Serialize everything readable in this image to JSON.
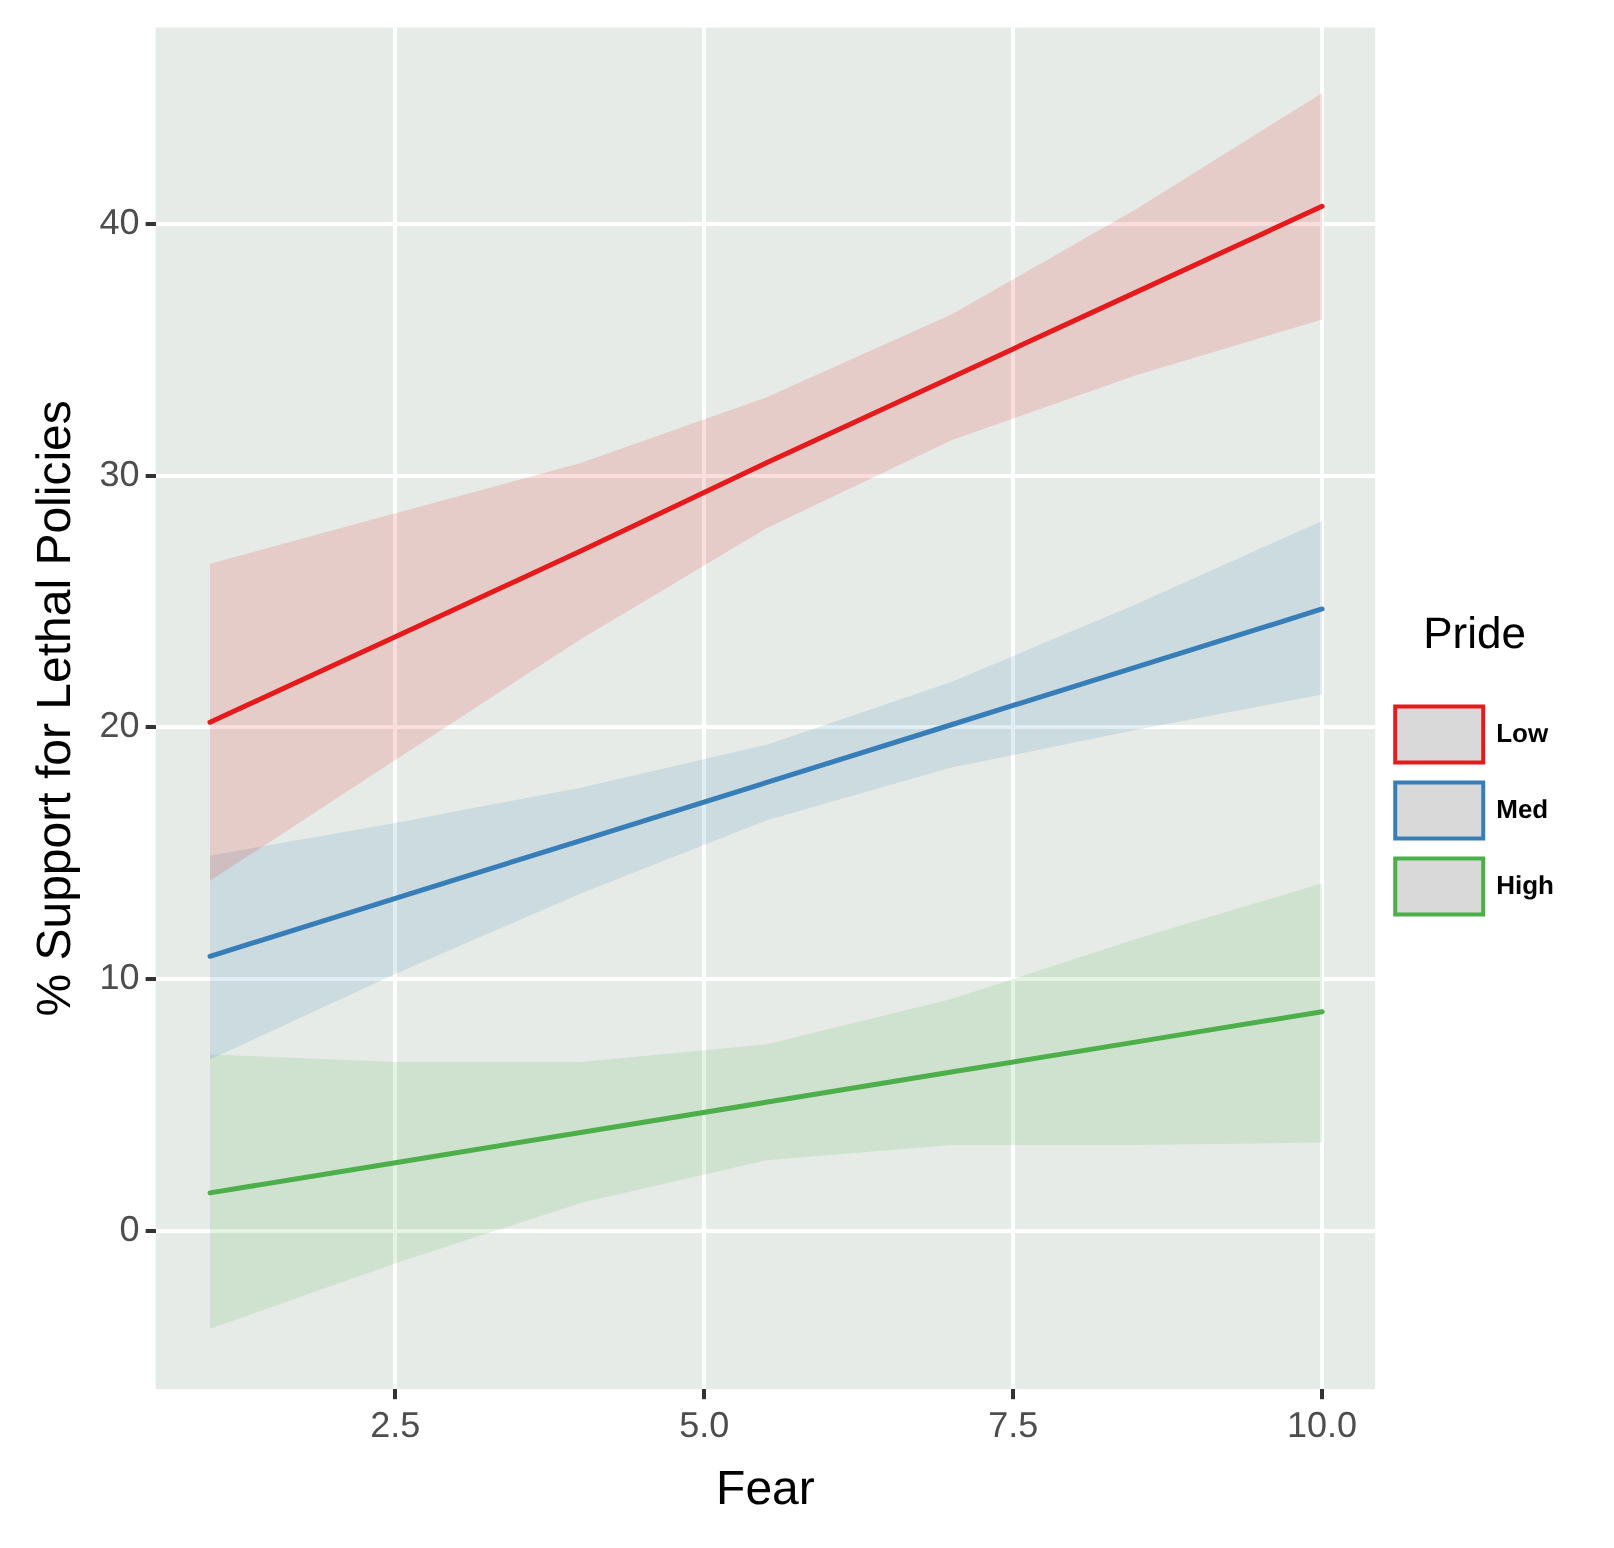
{
  "chart_data": {
    "type": "line",
    "xlabel": "Fear",
    "ylabel": "% Support for Lethal Policies",
    "legend_title": "Pride",
    "legend": "right",
    "grid": true,
    "marker": "none",
    "line_style": "solid",
    "xlim": [
      0.56,
      10.43
    ],
    "ylim": [
      -6.3,
      47.8
    ],
    "xticks": [
      2.5,
      {
        "value": 5,
        "label": "5.0"
      },
      7.5,
      {
        "value": 10,
        "label": "10.0"
      }
    ],
    "yticks": [
      0,
      10,
      20,
      30,
      40
    ],
    "series": [
      {
        "name": "Low",
        "color": "#e41a1c",
        "x": [
          1,
          2.5,
          4,
          5.5,
          7,
          8.5,
          10
        ],
        "values": [
          20.2,
          23.6,
          27.0,
          30.5,
          33.9,
          37.3,
          40.7
        ],
        "lower": [
          13.9,
          18.7,
          23.5,
          27.9,
          31.4,
          34.0,
          36.2
        ],
        "upper": [
          26.5,
          28.5,
          30.5,
          33.1,
          36.4,
          40.6,
          45.2
        ]
      },
      {
        "name": "Med",
        "color": "#377eb8",
        "x": [
          1,
          2.5,
          4,
          5.5,
          7,
          8.5,
          10
        ],
        "values": [
          10.9,
          13.2,
          15.5,
          17.8,
          20.1,
          22.4,
          24.7
        ],
        "lower": [
          6.8,
          10.2,
          13.4,
          16.3,
          18.4,
          19.9,
          21.3
        ],
        "upper": [
          14.9,
          16.2,
          17.6,
          19.3,
          21.8,
          24.9,
          28.2
        ]
      },
      {
        "name": "High",
        "color": "#4daf4a",
        "x": [
          1,
          2.5,
          4,
          5.5,
          7,
          8.5,
          10
        ],
        "values": [
          1.5,
          2.7,
          3.9,
          5.1,
          6.3,
          7.5,
          8.7
        ],
        "lower": [
          -3.9,
          -1.3,
          1.1,
          2.8,
          3.4,
          3.4,
          3.5
        ],
        "upper": [
          7.0,
          6.7,
          6.7,
          7.4,
          9.2,
          11.6,
          13.8
        ]
      }
    ]
  }
}
